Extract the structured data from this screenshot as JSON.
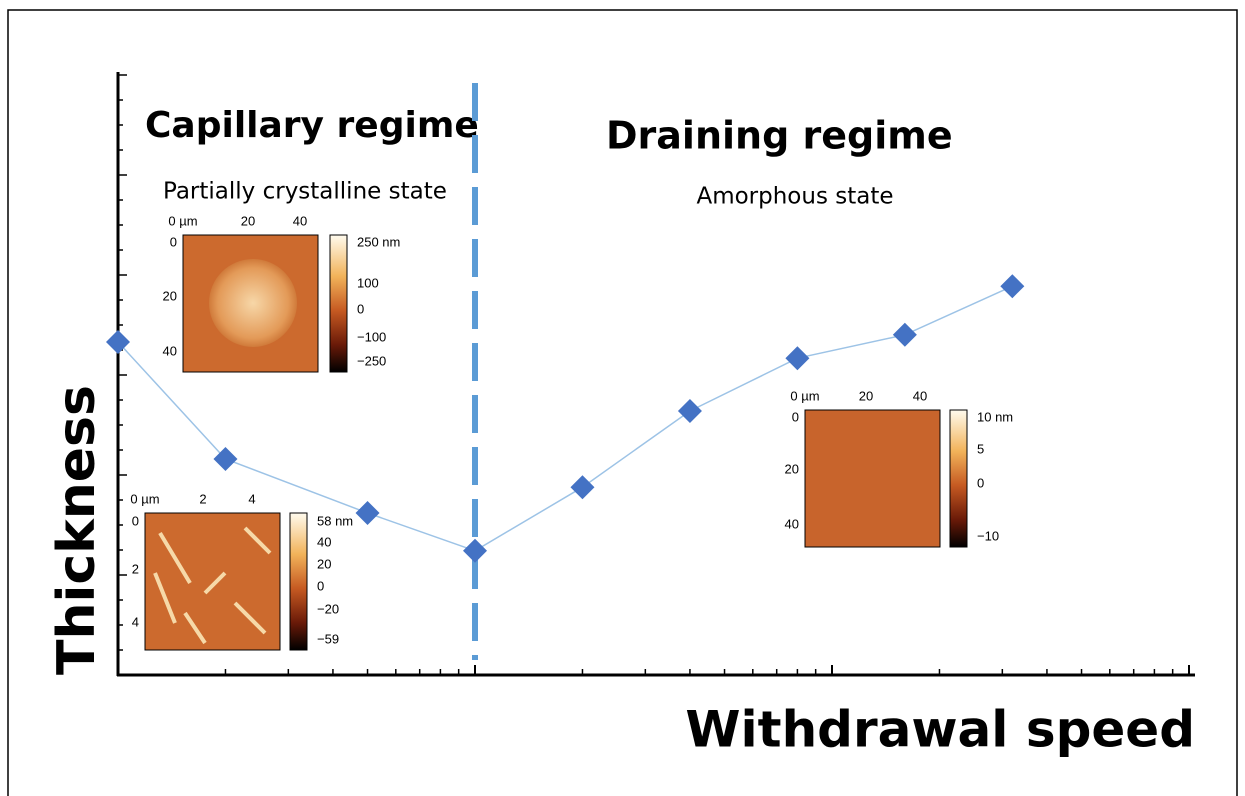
{
  "chart_data": {
    "type": "line",
    "x_label": "Withdrawal speed",
    "y_label": "Thickness",
    "annotations": [
      "Capillary regime",
      "Partially crystalline state",
      "Draining regime",
      "Amorphous state"
    ],
    "x": [
      1,
      2,
      5,
      10,
      20,
      40,
      80,
      160,
      320
    ],
    "series": [
      {
        "name": "Thickness",
        "color": "#4472c4",
        "line_color": "#9dc3e6",
        "values": [
          55.5,
          36,
          27,
          20.7,
          31.3,
          44,
          52.8,
          56.7,
          64.8
        ]
      }
    ],
    "xlim": [
      1,
      1000
    ],
    "xticks": [
      1,
      10,
      100,
      1000
    ],
    "x_log": true,
    "ylim": [
      0,
      100
    ],
    "divider_x": 10,
    "divider_color": "#5b9bd5",
    "insets": [
      {
        "x_labels": [
          "0 µm",
          "20",
          "40"
        ],
        "y_labels": [
          "0",
          "20",
          "40"
        ],
        "colorbar_labels": [
          "250 nm",
          "100",
          "0",
          "−100",
          "−250"
        ]
      },
      {
        "x_labels": [
          "0 µm",
          "2",
          "4"
        ],
        "y_labels": [
          "0",
          "2",
          "4"
        ],
        "colorbar_labels": [
          "58 nm",
          "40",
          "20",
          "0",
          "−20",
          "−59"
        ]
      },
      {
        "x_labels": [
          "0 µm",
          "20",
          "40"
        ],
        "y_labels": [
          "0",
          "20",
          "40"
        ],
        "colorbar_labels": [
          "10 nm",
          "5",
          "0",
          "−10"
        ]
      }
    ]
  }
}
